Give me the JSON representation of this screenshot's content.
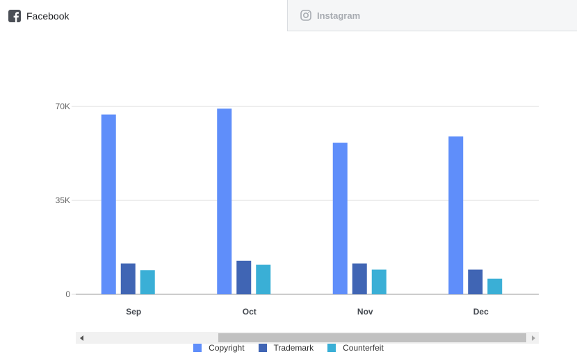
{
  "tabs": {
    "facebook": {
      "label": "Facebook",
      "icon": "facebook-icon"
    },
    "instagram": {
      "label": "Instagram",
      "icon": "instagram-icon"
    }
  },
  "colors": {
    "copyright": "#5f8efa",
    "trademark": "#4065b4",
    "counterfeit": "#3aafd6",
    "grid": "#dddddd",
    "axis": "#999999"
  },
  "chart_data": {
    "type": "bar",
    "categories": [
      "Sep",
      "Oct",
      "Nov",
      "Dec"
    ],
    "series": [
      {
        "name": "Copyright",
        "values": [
          67000,
          69200,
          56500,
          58800
        ]
      },
      {
        "name": "Trademark",
        "values": [
          11500,
          12500,
          11500,
          9200
        ]
      },
      {
        "name": "Counterfeit",
        "values": [
          9000,
          11000,
          9200,
          5800
        ]
      }
    ],
    "yticks": [
      "0",
      "35K",
      "70K"
    ],
    "ytick_values": [
      0,
      35000,
      70000
    ],
    "ylim": [
      0,
      70000
    ],
    "grid": true,
    "legend_position": "bottom"
  }
}
